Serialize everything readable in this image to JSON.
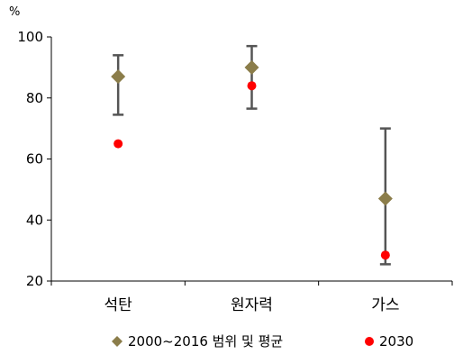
{
  "chart_data": {
    "type": "scatter",
    "unit": "%",
    "categories": [
      "석탄",
      "원자력",
      "가스"
    ],
    "ylim": [
      20,
      100
    ],
    "yticks": [
      20,
      40,
      60,
      80,
      100
    ],
    "grid": false,
    "legend_position": "bottom",
    "series": [
      {
        "name": "2000~2016 범위 및 평균",
        "marker": "diamond",
        "color": "#8B7D4A",
        "values": [
          87,
          90,
          47
        ],
        "ranges": [
          [
            74.5,
            94
          ],
          [
            76.5,
            97
          ],
          [
            25.5,
            70
          ]
        ]
      },
      {
        "name": "2030",
        "marker": "circle",
        "color": "#FF0000",
        "values": [
          65,
          84,
          28.5
        ]
      }
    ]
  }
}
